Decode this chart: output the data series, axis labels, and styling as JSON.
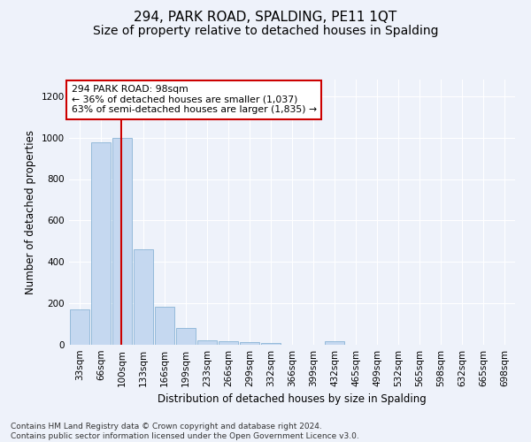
{
  "title": "294, PARK ROAD, SPALDING, PE11 1QT",
  "subtitle": "Size of property relative to detached houses in Spalding",
  "xlabel": "Distribution of detached houses by size in Spalding",
  "ylabel": "Number of detached properties",
  "categories": [
    "33sqm",
    "66sqm",
    "100sqm",
    "133sqm",
    "166sqm",
    "199sqm",
    "233sqm",
    "266sqm",
    "299sqm",
    "332sqm",
    "366sqm",
    "399sqm",
    "432sqm",
    "465sqm",
    "499sqm",
    "532sqm",
    "565sqm",
    "598sqm",
    "632sqm",
    "665sqm",
    "698sqm"
  ],
  "values": [
    170,
    975,
    1000,
    462,
    185,
    80,
    22,
    17,
    11,
    8,
    0,
    0,
    17,
    0,
    0,
    0,
    0,
    0,
    0,
    0,
    0
  ],
  "bar_color": "#c5d8f0",
  "bar_edge_color": "#7aaad0",
  "vline_x": 1.97,
  "vline_color": "#cc0000",
  "annotation_text": "294 PARK ROAD: 98sqm\n← 36% of detached houses are smaller (1,037)\n63% of semi-detached houses are larger (1,835) →",
  "annotation_box_color": "#ffffff",
  "annotation_box_edge": "#cc0000",
  "ylim": [
    0,
    1280
  ],
  "yticks": [
    0,
    200,
    400,
    600,
    800,
    1000,
    1200
  ],
  "footnote": "Contains HM Land Registry data © Crown copyright and database right 2024.\nContains public sector information licensed under the Open Government Licence v3.0.",
  "background_color": "#eef2fa",
  "grid_color": "#ffffff",
  "title_fontsize": 11,
  "subtitle_fontsize": 10,
  "label_fontsize": 8.5,
  "tick_fontsize": 7.5,
  "footnote_fontsize": 6.5
}
